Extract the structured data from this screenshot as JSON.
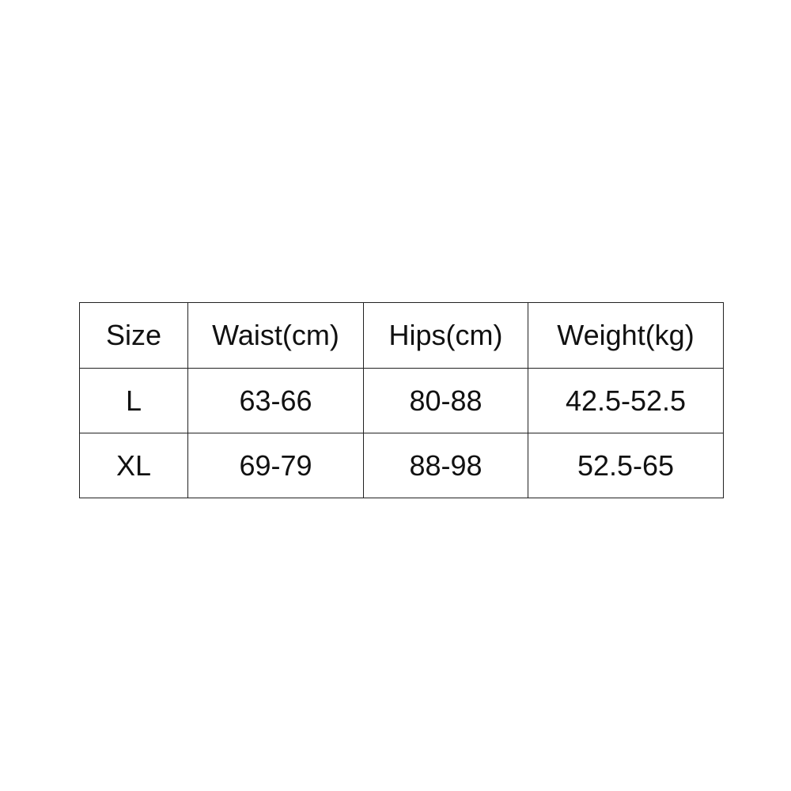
{
  "table": {
    "headers": [
      "Size",
      "Waist(cm)",
      "Hips(cm)",
      "Weight(kg)"
    ],
    "rows": [
      [
        "L",
        "63-66",
        "80-88",
        "42.5-52.5"
      ],
      [
        "XL",
        "69-79",
        "88-98",
        "52.5-65"
      ]
    ]
  }
}
